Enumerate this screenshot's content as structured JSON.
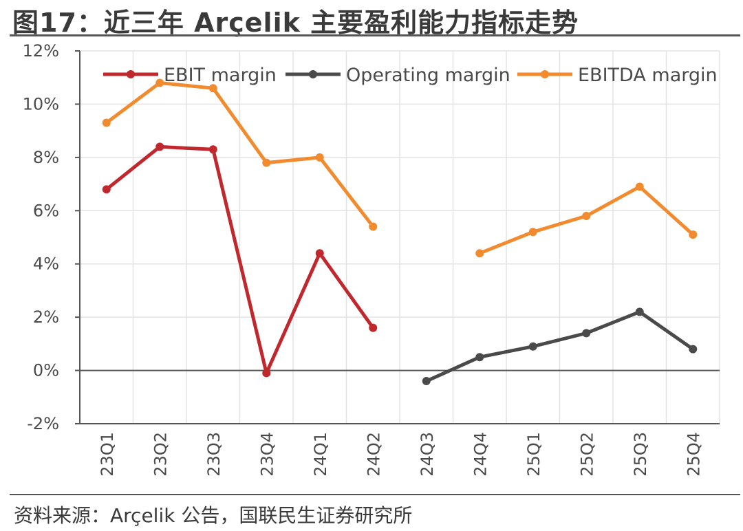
{
  "title": "图17：近三年 Arçelik 主要盈利能力指标走势",
  "source": "资料来源：Arçelik 公告，国联民生证券研究所",
  "chart_data": {
    "type": "line",
    "categories": [
      "23Q1",
      "23Q2",
      "23Q3",
      "23Q4",
      "24Q1",
      "24Q2",
      "24Q3",
      "24Q4",
      "25Q1",
      "25Q2",
      "25Q3",
      "25Q4"
    ],
    "ylim": [
      -2,
      12
    ],
    "yticks": [
      -2,
      0,
      2,
      4,
      6,
      8,
      10,
      12
    ],
    "ytick_labels": [
      "-2%",
      "0%",
      "2%",
      "4%",
      "6%",
      "8%",
      "10%",
      "12%"
    ],
    "grid": true,
    "legend_position": "top",
    "series": [
      {
        "name": "EBIT margin",
        "color": "#c0282d",
        "values": [
          6.8,
          8.4,
          8.3,
          -0.1,
          4.4,
          1.6,
          null,
          null,
          null,
          null,
          null,
          null
        ]
      },
      {
        "name": "Operating margin",
        "color": "#4a4a4a",
        "values": [
          null,
          null,
          null,
          null,
          null,
          null,
          -0.4,
          0.5,
          0.9,
          1.4,
          2.2,
          0.8
        ]
      },
      {
        "name": "EBITDA margin",
        "color": "#f28a2e",
        "values": [
          9.3,
          10.8,
          10.6,
          7.8,
          8.0,
          5.4,
          null,
          4.4,
          5.2,
          5.8,
          6.9,
          5.1
        ]
      }
    ]
  }
}
